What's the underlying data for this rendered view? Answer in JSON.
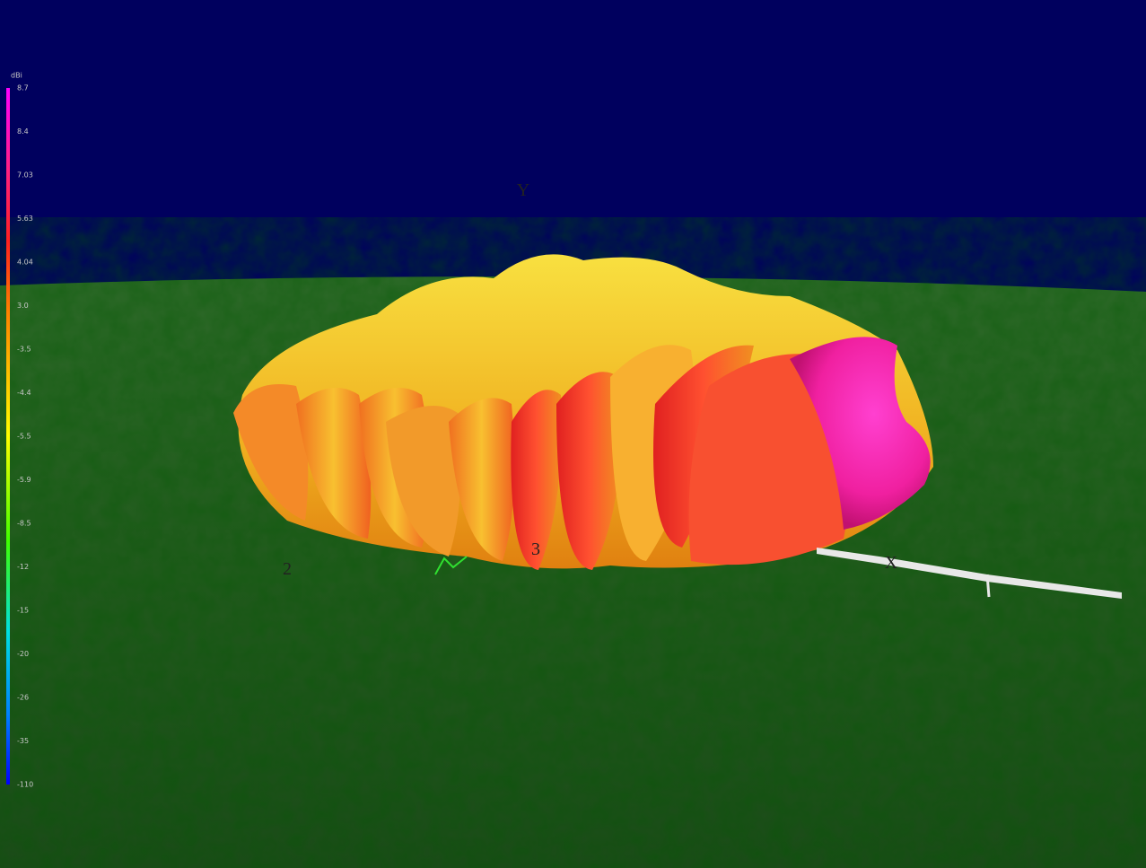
{
  "colorbar": {
    "unit": "dBi",
    "labels": [
      "8.7",
      "8.4",
      "7.03",
      "5.63",
      "4.04",
      "3.0",
      "-3.5",
      "-4.4",
      "-5.5",
      "-5.9",
      "-8.5",
      "-12",
      "-15",
      "-20",
      "-26",
      "-35",
      "-110"
    ]
  },
  "axes": {
    "y": "Y",
    "x": "X",
    "marks": [
      "2",
      "3"
    ]
  }
}
